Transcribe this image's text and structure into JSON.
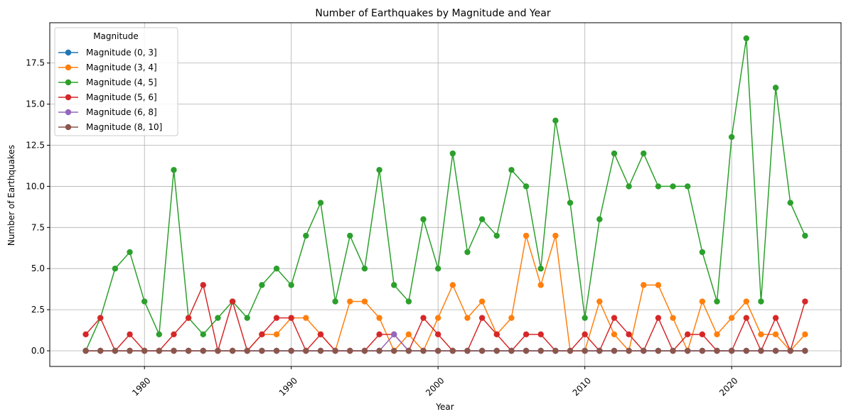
{
  "chart_data": {
    "type": "line",
    "title": "Number of Earthquakes by Magnitude and Year",
    "xlabel": "Year",
    "ylabel": "Number of Earthquakes",
    "xlim": [
      1973.55,
      2027.45
    ],
    "ylim": [
      -0.95,
      19.95
    ],
    "xticks": [
      1980,
      1990,
      2000,
      2010,
      2020
    ],
    "xtick_labels": [
      "1980",
      "1990",
      "2000",
      "2010",
      "2020"
    ],
    "yticks": [
      0,
      2.5,
      5,
      7.5,
      10,
      12.5,
      15,
      17.5
    ],
    "ytick_labels": [
      "0.0",
      "2.5",
      "5.0",
      "7.5",
      "10.0",
      "12.5",
      "15.0",
      "17.5"
    ],
    "grid": true,
    "legend": {
      "title": "Magnitude",
      "placement": "top-left"
    },
    "x": [
      1976,
      1977,
      1978,
      1979,
      1980,
      1981,
      1982,
      1983,
      1984,
      1985,
      1986,
      1987,
      1988,
      1989,
      1990,
      1991,
      1992,
      1993,
      1994,
      1995,
      1996,
      1997,
      1998,
      1999,
      2000,
      2001,
      2002,
      2003,
      2004,
      2005,
      2006,
      2007,
      2008,
      2009,
      2010,
      2011,
      2012,
      2013,
      2014,
      2015,
      2016,
      2017,
      2018,
      2019,
      2020,
      2021,
      2022,
      2023,
      2024,
      2025
    ],
    "series": [
      {
        "name": "Magnitude (0, 3]",
        "color": "#1f77b4",
        "values": [
          0,
          0,
          0,
          0,
          0,
          0,
          0,
          0,
          0,
          0,
          0,
          0,
          0,
          0,
          0,
          0,
          0,
          0,
          0,
          0,
          0,
          0,
          0,
          0,
          0,
          0,
          0,
          0,
          0,
          0,
          0,
          0,
          0,
          0,
          0,
          0,
          0,
          0,
          0,
          0,
          0,
          0,
          0,
          0,
          0,
          0,
          0,
          0,
          0,
          0
        ]
      },
      {
        "name": "Magnitude (3, 4]",
        "color": "#ff7f0e",
        "values": [
          0,
          0,
          0,
          0,
          0,
          0,
          0,
          0,
          0,
          0,
          0,
          0,
          1,
          1,
          2,
          2,
          1,
          0,
          3,
          3,
          2,
          0,
          1,
          0,
          2,
          4,
          2,
          3,
          1,
          2,
          7,
          4,
          7,
          0,
          0,
          3,
          1,
          0,
          4,
          4,
          2,
          0,
          3,
          1,
          2,
          3,
          1,
          1,
          0,
          1
        ]
      },
      {
        "name": "Magnitude (4, 5]",
        "color": "#2ca02c",
        "values": [
          0,
          2,
          5,
          6,
          3,
          1,
          11,
          2,
          1,
          2,
          3,
          2,
          4,
          5,
          4,
          7,
          9,
          3,
          7,
          5,
          11,
          4,
          3,
          8,
          5,
          12,
          6,
          8,
          7,
          11,
          10,
          5,
          14,
          9,
          2,
          8,
          12,
          10,
          12,
          10,
          10,
          10,
          6,
          3,
          13,
          19,
          3,
          16,
          9,
          7
        ]
      },
      {
        "name": "Magnitude (5, 6]",
        "color": "#d62728",
        "values": [
          1,
          2,
          0,
          1,
          0,
          0,
          1,
          2,
          4,
          0,
          3,
          0,
          1,
          2,
          2,
          0,
          1,
          0,
          0,
          0,
          1,
          1,
          0,
          2,
          1,
          0,
          0,
          2,
          1,
          0,
          1,
          1,
          0,
          0,
          1,
          0,
          2,
          1,
          0,
          2,
          0,
          1,
          1,
          0,
          0,
          2,
          0,
          2,
          0,
          3
        ]
      },
      {
        "name": "Magnitude (6, 8]",
        "color": "#9467bd",
        "values": [
          0,
          0,
          0,
          0,
          0,
          0,
          0,
          0,
          0,
          0,
          0,
          0,
          0,
          0,
          0,
          0,
          0,
          0,
          0,
          0,
          0,
          1,
          0,
          0,
          0,
          0,
          0,
          0,
          0,
          0,
          0,
          0,
          0,
          0,
          0,
          0,
          0,
          0,
          0,
          0,
          0,
          0,
          0,
          0,
          0,
          0,
          0,
          0,
          0,
          0
        ]
      },
      {
        "name": "Magnitude (8, 10]",
        "color": "#8c564b",
        "values": [
          0,
          0,
          0,
          0,
          0,
          0,
          0,
          0,
          0,
          0,
          0,
          0,
          0,
          0,
          0,
          0,
          0,
          0,
          0,
          0,
          0,
          0,
          0,
          0,
          0,
          0,
          0,
          0,
          0,
          0,
          0,
          0,
          0,
          0,
          0,
          0,
          0,
          0,
          0,
          0,
          0,
          0,
          0,
          0,
          0,
          0,
          0,
          0,
          0,
          0
        ]
      }
    ]
  }
}
